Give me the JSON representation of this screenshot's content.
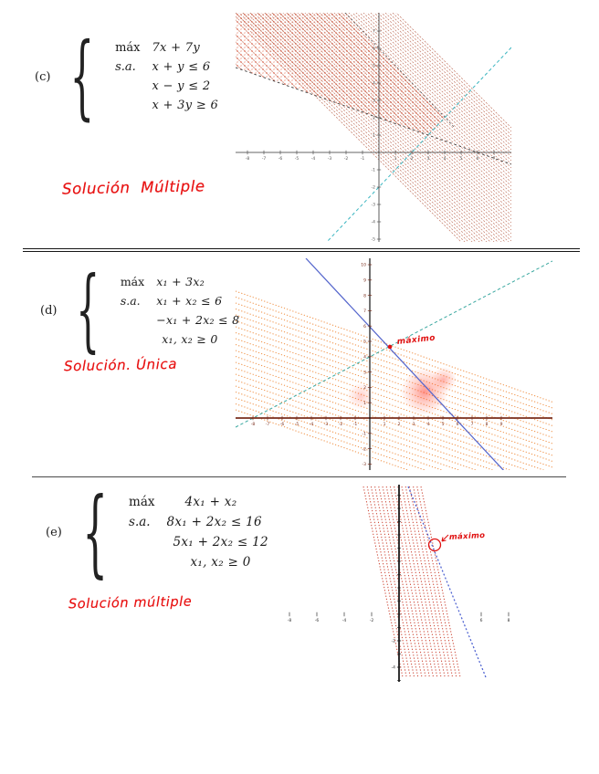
{
  "glyphs": {
    "brace": "{"
  },
  "colors": {
    "handwriting_red": "#e81515",
    "level_lines_c": "#b4573f",
    "level_lines_d": "#ef8a3a",
    "level_lines_e": "#cc4433",
    "line_blue": "#5566cc",
    "line_cyan": "#3aa8a0",
    "axis_maroon": "#7a2e1d"
  },
  "problems": [
    {
      "label": "(c)",
      "max_kw": "máx",
      "st_kw": "s.a.",
      "objective": "7x + 7y",
      "constraints": [
        "x + y ≤ 6",
        "x − y ≤ 2",
        "x + 3y ≥ 6"
      ],
      "note": "Solución  Múltiple"
    },
    {
      "label": "(d)",
      "max_kw": "máx",
      "st_kw": "s.a.",
      "objective": "x₁ + 3x₂",
      "constraints": [
        "x₁ + x₂ ≤ 6",
        "−x₁ + 2x₂ ≤ 8",
        "x₁, x₂ ≥ 0"
      ],
      "note": "Solución. Única"
    },
    {
      "label": "(e)",
      "max_kw": "máx",
      "st_kw": "s.a.",
      "objective": "4x₁ + x₂",
      "constraints": [
        "8x₁ + 2x₂ ≤ 16",
        "5x₁ + 2x₂ ≤ 12",
        "x₁, x₂ ≥ 0"
      ],
      "note": "Solución múltiple"
    }
  ],
  "chart_data": [
    {
      "key": "c",
      "type": "line",
      "x_ticks": [
        -8,
        -7,
        -6,
        -5,
        -4,
        -3,
        -2,
        -1,
        1,
        2,
        3,
        4,
        5,
        6,
        7
      ],
      "y_ticks": [
        7,
        6,
        5,
        4,
        3,
        2,
        1,
        -1,
        -2,
        -3,
        -4,
        -5
      ],
      "constraint_lines": [
        "x + y = 6",
        "x − y = 2",
        "x + 3y = 6"
      ],
      "objective_level_lines": "7x + 7y = c (pendiente −1)",
      "shaded_region": "región factible (trama punteada roja, no acotada)",
      "annotation": null
    },
    {
      "key": "d",
      "type": "line",
      "x_ticks": [
        -8,
        -7,
        -6,
        -5,
        -4,
        -3,
        -2,
        -1,
        1,
        2,
        3,
        4,
        5,
        6,
        7,
        8,
        9
      ],
      "y_ticks": [
        10,
        9,
        8,
        7,
        6,
        5,
        4,
        3,
        2,
        1,
        -1,
        -2,
        -3
      ],
      "constraint_lines": [
        "x₁ + x₂ = 6",
        "−x₁ + 2x₂ = 8"
      ],
      "objective_level_lines": "x₁ + 3x₂ = c (banda punteada naranja)",
      "annotation": {
        "text": "máximo",
        "point": [
          1.33,
          4.67
        ]
      }
    },
    {
      "key": "e",
      "type": "line",
      "x_ticks": [
        -8,
        -6,
        -4,
        -2,
        6,
        8
      ],
      "y_ticks": [
        -2,
        -4
      ],
      "constraint_lines": [
        "8x₁ + 2x₂ = 16"
      ],
      "objective_level_lines": "4x₁ + x₂ = c (banda punteada roja)",
      "annotation": {
        "text": "máximo",
        "point": [
          1.33,
          2.67
        ]
      }
    }
  ]
}
